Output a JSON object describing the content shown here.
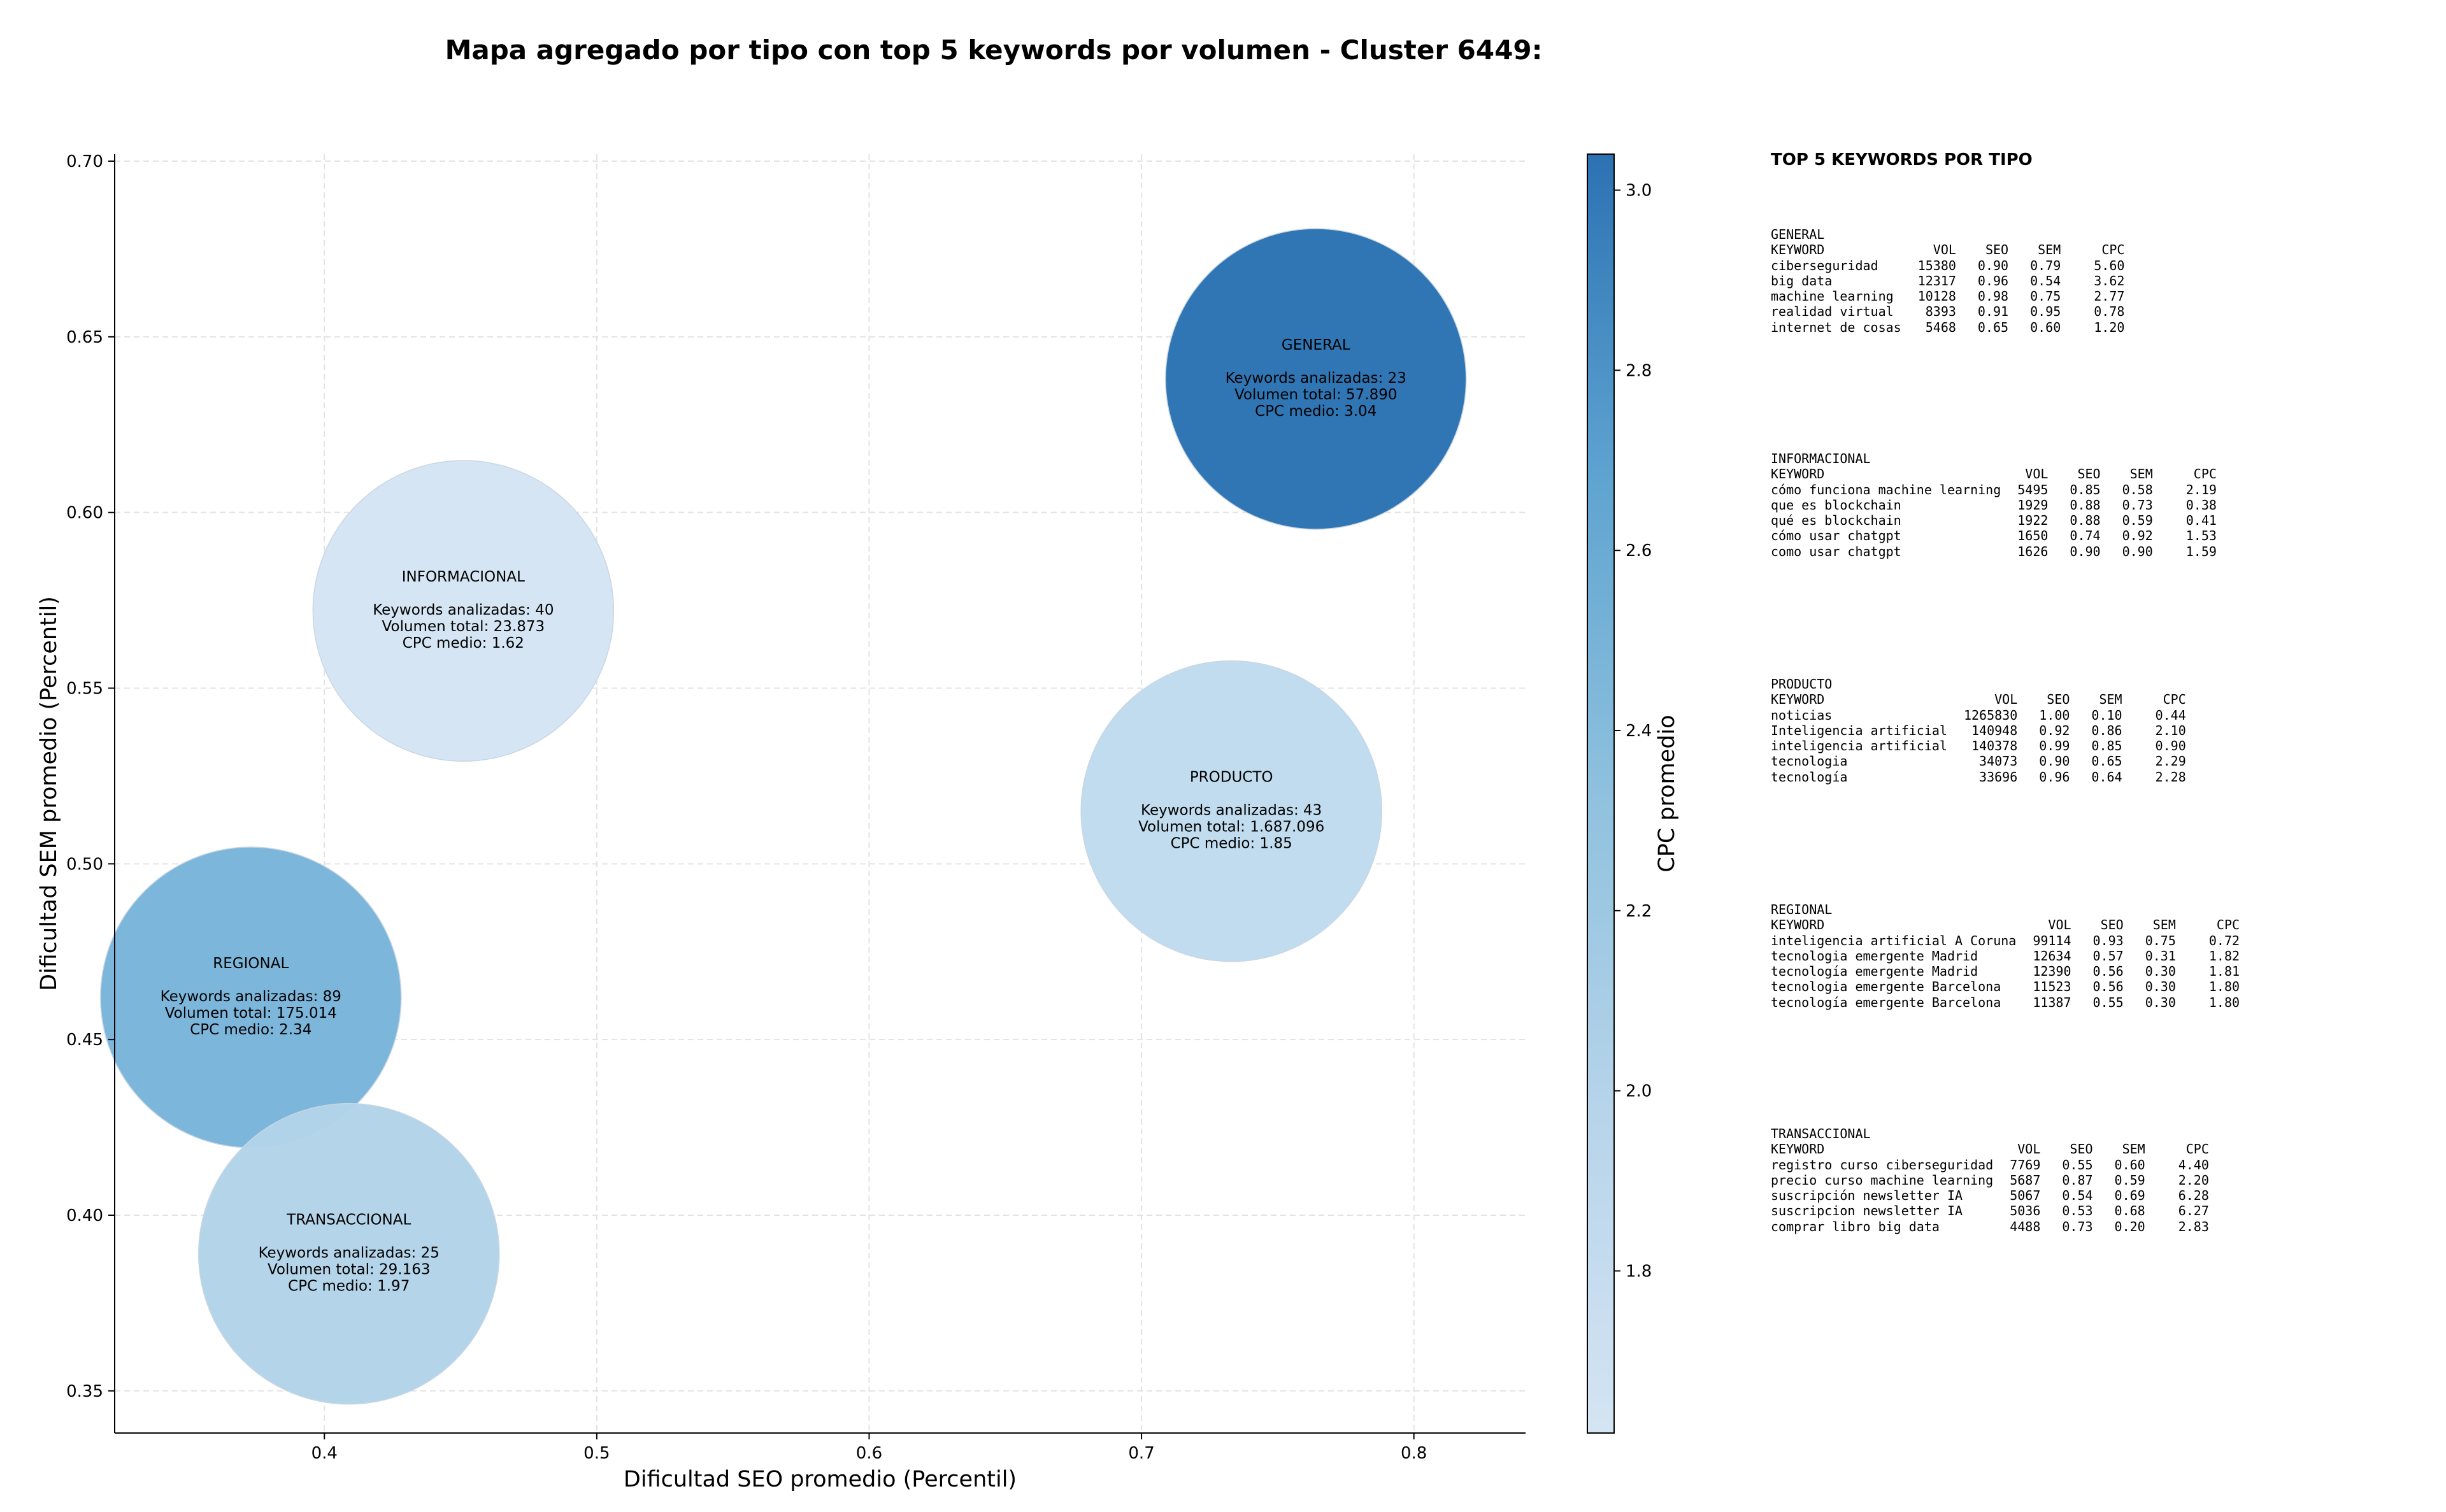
{
  "title": "Mapa agregado por tipo con top 5 keywords por volumen - Cluster 6449:",
  "chart_data": {
    "type": "scatter",
    "title": "Mapa agregado por tipo con top 5 keywords por volumen - Cluster 6449:",
    "xlabel": "Dificultad SEO promedio (Percentil)",
    "ylabel": "Dificultad SEM promedio (Percentil)",
    "xlim": [
      0.323,
      0.841
    ],
    "ylim": [
      0.338,
      0.702
    ],
    "xticks": [
      "0.4",
      "0.5",
      "0.6",
      "0.7",
      "0.8"
    ],
    "xtick_values": [
      0.4,
      0.5,
      0.6,
      0.7,
      0.8
    ],
    "yticks": [
      "0.35",
      "0.40",
      "0.45",
      "0.50",
      "0.55",
      "0.60",
      "0.65",
      "0.70"
    ],
    "ytick_values": [
      0.35,
      0.4,
      0.45,
      0.5,
      0.55,
      0.6,
      0.65,
      0.7
    ],
    "grid": true,
    "colorbar": {
      "label": "CPC promedio",
      "range": [
        1.62,
        3.04
      ],
      "ticks": [
        "1.8",
        "2.0",
        "2.2",
        "2.4",
        "2.6",
        "2.8",
        "3.0"
      ],
      "tick_values": [
        1.8,
        2.0,
        2.2,
        2.4,
        2.6,
        2.8,
        3.0
      ],
      "colormap": "Blues",
      "color_low": "#d4e4f3",
      "color_high": "#2c72b3"
    },
    "bubbles": [
      {
        "name": "GENERAL",
        "x": 0.764,
        "y": 0.638,
        "count_label": "Keywords analizadas: 23",
        "volume_label": "Volumen total: 57.890",
        "cpc_label": "CPC medio: 3.04",
        "cpc": 3.04,
        "color": "#2c72b3"
      },
      {
        "name": "INFORMACIONAL",
        "x": 0.451,
        "y": 0.572,
        "count_label": "Keywords analizadas: 40",
        "volume_label": "Volumen total: 23.873",
        "cpc_label": "CPC medio: 1.62",
        "cpc": 1.62,
        "color": "#d4e4f3"
      },
      {
        "name": "PRODUCTO",
        "x": 0.733,
        "y": 0.515,
        "count_label": "Keywords analizadas: 43",
        "volume_label": "Volumen total: 1.687.096",
        "cpc_label": "CPC medio: 1.85",
        "cpc": 1.85,
        "color": "#bfdbee"
      },
      {
        "name": "REGIONAL",
        "x": 0.373,
        "y": 0.462,
        "count_label": "Keywords analizadas: 89",
        "volume_label": "Volumen total: 175.014",
        "cpc_label": "CPC medio: 2.34",
        "cpc": 2.34,
        "color": "#7ab5da"
      },
      {
        "name": "TRANSACCIONAL",
        "x": 0.409,
        "y": 0.389,
        "count_label": "Keywords analizadas: 25",
        "volume_label": "Volumen total: 29.163",
        "cpc_label": "CPC medio: 1.97",
        "cpc": 1.97,
        "color": "#b3d3e9"
      }
    ]
  },
  "side_panel": {
    "title": "TOP 5 KEYWORDS POR TIPO",
    "headers": [
      "KEYWORD",
      "VOL",
      "SEO",
      "SEM",
      "CPC"
    ],
    "sections": [
      {
        "name": "GENERAL",
        "rows": [
          [
            "ciberseguridad",
            "15380",
            "0.90",
            "0.79",
            "5.60"
          ],
          [
            "big data",
            "12317",
            "0.96",
            "0.54",
            "3.62"
          ],
          [
            "machine learning",
            "10128",
            "0.98",
            "0.75",
            "2.77"
          ],
          [
            "realidad virtual",
            "8393",
            "0.91",
            "0.95",
            "0.78"
          ],
          [
            "internet de cosas",
            "5468",
            "0.65",
            "0.60",
            "1.20"
          ]
        ]
      },
      {
        "name": "INFORMACIONAL",
        "rows": [
          [
            "cómo funciona machine learning",
            "5495",
            "0.85",
            "0.58",
            "2.19"
          ],
          [
            "que es blockchain",
            "1929",
            "0.88",
            "0.73",
            "0.38"
          ],
          [
            "qué es blockchain",
            "1922",
            "0.88",
            "0.59",
            "0.41"
          ],
          [
            "cómo usar chatgpt",
            "1650",
            "0.74",
            "0.92",
            "1.53"
          ],
          [
            "como usar chatgpt",
            "1626",
            "0.90",
            "0.90",
            "1.59"
          ]
        ]
      },
      {
        "name": "PRODUCTO",
        "rows": [
          [
            "noticias",
            "1265830",
            "1.00",
            "0.10",
            "0.44"
          ],
          [
            "Inteligencia artificial",
            "140948",
            "0.92",
            "0.86",
            "2.10"
          ],
          [
            "inteligencia artificial",
            "140378",
            "0.99",
            "0.85",
            "0.90"
          ],
          [
            "tecnologia",
            "34073",
            "0.90",
            "0.65",
            "2.29"
          ],
          [
            "tecnología",
            "33696",
            "0.96",
            "0.64",
            "2.28"
          ]
        ]
      },
      {
        "name": "REGIONAL",
        "rows": [
          [
            "inteligencia artificial A Coruna",
            "99114",
            "0.93",
            "0.75",
            "0.72"
          ],
          [
            "tecnologia emergente Madrid",
            "12634",
            "0.57",
            "0.31",
            "1.82"
          ],
          [
            "tecnología emergente Madrid",
            "12390",
            "0.56",
            "0.30",
            "1.81"
          ],
          [
            "tecnologia emergente Barcelona",
            "11523",
            "0.56",
            "0.30",
            "1.80"
          ],
          [
            "tecnología emergente Barcelona",
            "11387",
            "0.55",
            "0.30",
            "1.80"
          ]
        ]
      },
      {
        "name": "TRANSACCIONAL",
        "rows": [
          [
            "registro curso ciberseguridad",
            "7769",
            "0.55",
            "0.60",
            "4.40"
          ],
          [
            "precio curso machine learning",
            "5687",
            "0.87",
            "0.59",
            "2.20"
          ],
          [
            "suscripción newsletter IA",
            "5067",
            "0.54",
            "0.69",
            "6.28"
          ],
          [
            "suscripcion newsletter IA",
            "5036",
            "0.53",
            "0.68",
            "6.27"
          ],
          [
            "comprar libro big data",
            "4488",
            "0.73",
            "0.20",
            "2.83"
          ]
        ]
      }
    ]
  }
}
